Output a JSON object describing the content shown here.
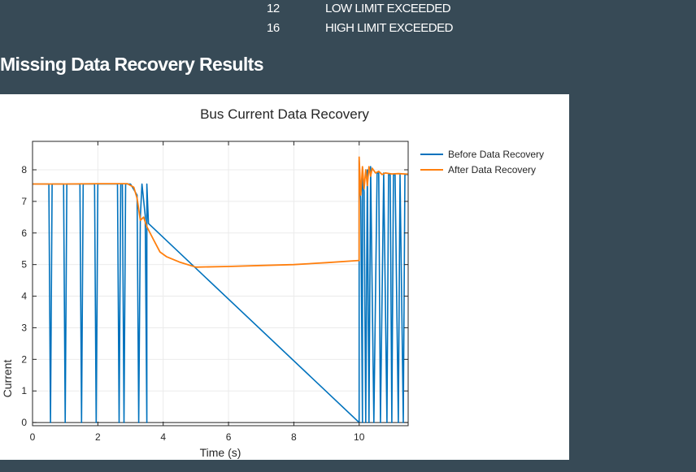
{
  "status_codes": [
    {
      "code": "12",
      "description": "LOW LIMIT EXCEEDED"
    },
    {
      "code": "16",
      "description": "HIGH LIMIT EXCEEDED"
    }
  ],
  "section": {
    "title": "Missing Data Recovery Results"
  },
  "colors": {
    "page_bg": "#374a56",
    "before": "#0072bd",
    "after": "#ff7f0e"
  },
  "chart_data": {
    "type": "line",
    "title": "Bus Current Data Recovery",
    "xlabel": "Time (s)",
    "ylabel": "Current",
    "xlim": [
      0,
      11.5
    ],
    "ylim": [
      -0.1,
      8.9
    ],
    "xticks": [
      0,
      2,
      4,
      6,
      8,
      10
    ],
    "yticks": [
      0,
      1,
      2,
      3,
      4,
      5,
      6,
      7,
      8
    ],
    "grid": true,
    "legend_position": "outside-right",
    "series": [
      {
        "name": "Before Data Recovery",
        "color": "#0072bd",
        "x": [
          0,
          0.5,
          0.55,
          0.6,
          0.65,
          0.95,
          1.0,
          1.05,
          1.45,
          1.5,
          1.55,
          1.6,
          1.9,
          1.95,
          2.0,
          2.6,
          2.65,
          2.7,
          2.75,
          2.8,
          2.85,
          3.0,
          3.2,
          3.25,
          3.3,
          3.35,
          3.45,
          3.5,
          3.5,
          3.55,
          10.0,
          10.0,
          10.05,
          10.1,
          10.1,
          10.15,
          10.2,
          10.25,
          10.3,
          10.35,
          10.35,
          10.45,
          10.55,
          10.6,
          10.65,
          10.75,
          10.85,
          10.9,
          10.95,
          11.0,
          11.05,
          11.1,
          11.2,
          11.25,
          11.35,
          11.4,
          11.5
        ],
        "y": [
          7.55,
          7.55,
          0,
          7.55,
          7.55,
          7.55,
          0,
          7.55,
          7.55,
          0,
          7.55,
          7.55,
          7.55,
          0,
          7.55,
          7.55,
          0,
          7.55,
          7.55,
          0,
          7.55,
          7.55,
          7.2,
          0,
          6.5,
          7.55,
          6.55,
          0,
          7.55,
          6.3,
          0,
          8.3,
          7.0,
          0,
          7.9,
          7.3,
          0,
          8.0,
          0,
          7.9,
          8.1,
          0,
          7.9,
          7.9,
          0,
          7.9,
          0,
          7.85,
          7.85,
          0,
          7.85,
          7.85,
          0,
          7.85,
          0,
          7.85,
          7.85
        ]
      },
      {
        "name": "After Data Recovery",
        "color": "#ff7f0e",
        "x": [
          0,
          1.0,
          2.0,
          2.9,
          3.1,
          3.2,
          3.3,
          3.4,
          3.5,
          3.7,
          3.9,
          4.1,
          4.5,
          5.0,
          6.0,
          7.0,
          8.0,
          9.0,
          10.0,
          10.0,
          10.05,
          10.1,
          10.15,
          10.2,
          10.25,
          10.3,
          10.35,
          10.4,
          10.5,
          10.6,
          10.7,
          10.8,
          11.0,
          11.2,
          11.5
        ],
        "y": [
          7.55,
          7.55,
          7.56,
          7.56,
          7.45,
          7.1,
          6.4,
          6.5,
          6.2,
          5.8,
          5.4,
          5.25,
          5.08,
          4.92,
          4.94,
          4.97,
          5.0,
          5.06,
          5.13,
          8.4,
          7.2,
          8.1,
          7.4,
          8.0,
          7.5,
          8.1,
          7.8,
          8.05,
          7.9,
          7.95,
          7.85,
          7.9,
          7.87,
          7.88,
          7.86
        ]
      }
    ]
  }
}
